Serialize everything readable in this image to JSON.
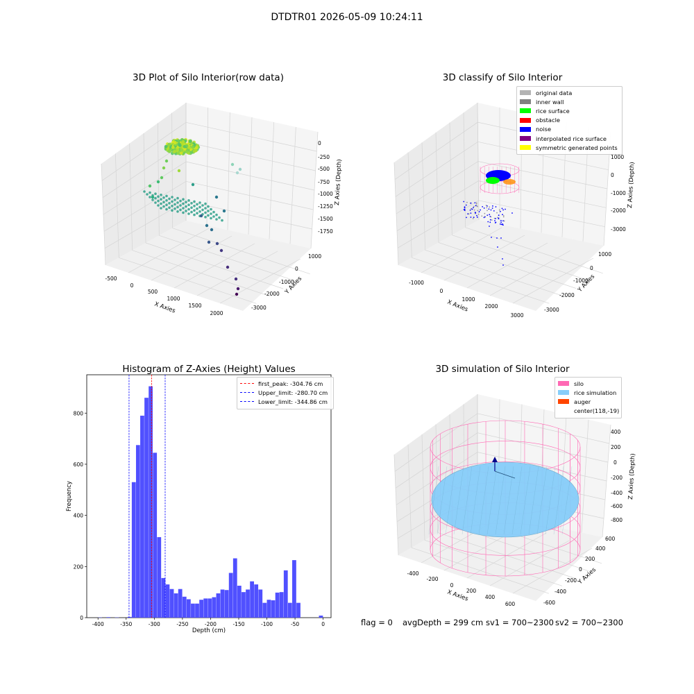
{
  "figure": {
    "suptitle": "DTDTR01 2026-05-09 10:24:11",
    "footer": {
      "flag": "flag = 0",
      "avg_depth": "avgDepth = 299 cm",
      "sv1": "sv1 = 700~2300",
      "sv2": "sv2 = 700~2300"
    }
  },
  "chart_data": [
    {
      "type": "scatter",
      "projection": "3d",
      "title": "3D Plot of Silo Interior(row data)",
      "xlabel": "X Axies",
      "ylabel": "Y Axies",
      "zlabel": "Z Axies (Depth)",
      "x_ticks": [
        "-500",
        "0",
        "500",
        "1000",
        "1500",
        "2000"
      ],
      "y_ticks": [
        "1000",
        "0",
        "-1000",
        "-2000",
        "-3000"
      ],
      "z_ticks": [
        "0",
        "-250",
        "-500",
        "-750",
        "-1000",
        "-1250",
        "-1500",
        "-1750"
      ],
      "colormap": "viridis (by depth)",
      "grid": true
    },
    {
      "type": "scatter",
      "projection": "3d",
      "title": "3D classify of Silo Interior",
      "xlabel": "X Axies",
      "ylabel": "Y Axies",
      "zlabel": "Z Axies (Depth)",
      "x_ticks": [
        "-1000",
        "0",
        "1000",
        "2000",
        "3000"
      ],
      "y_ticks": [
        "1000",
        "0",
        "-1000",
        "-2000",
        "-3000"
      ],
      "z_ticks": [
        "1000",
        "0",
        "-1000",
        "-2000",
        "-3000"
      ],
      "legend": [
        {
          "label": "original data",
          "color": "#b3b3b3"
        },
        {
          "label": "inner wall",
          "color": "#808080"
        },
        {
          "label": "rice surface",
          "color": "#00ff00"
        },
        {
          "label": "obstacle",
          "color": "#ff0000"
        },
        {
          "label": "noise",
          "color": "#0000ff"
        },
        {
          "label": "interpolated rice surface",
          "color": "#800080"
        },
        {
          "label": "symmetric generated points",
          "color": "#ffff00"
        }
      ],
      "legend_position": "top-right",
      "grid": true
    },
    {
      "type": "bar",
      "title": "Histogram of Z-Axies (Height) Values",
      "xlabel": "Depth (cm)",
      "ylabel": "Frequency",
      "bar_color": "#5050ff",
      "xlim": [
        -420,
        14
      ],
      "ylim": [
        0,
        950
      ],
      "x_ticks": [
        -400,
        -350,
        -300,
        -250,
        -200,
        -150,
        -100,
        -50,
        0
      ],
      "y_ticks": [
        0,
        200,
        400,
        600,
        800
      ],
      "bin_width": 7.5,
      "bins": [
        {
          "x": -400,
          "value": 1
        },
        {
          "x": -385,
          "value": 2
        },
        {
          "x": -370,
          "value": 1
        },
        {
          "x": -347.5,
          "value": 3
        },
        {
          "x": -340,
          "value": 530
        },
        {
          "x": -332.5,
          "value": 675
        },
        {
          "x": -325,
          "value": 790
        },
        {
          "x": -317.5,
          "value": 860
        },
        {
          "x": -310,
          "value": 905
        },
        {
          "x": -302.5,
          "value": 645
        },
        {
          "x": -295,
          "value": 315
        },
        {
          "x": -287.5,
          "value": 155
        },
        {
          "x": -280,
          "value": 130
        },
        {
          "x": -272.5,
          "value": 112
        },
        {
          "x": -265,
          "value": 95
        },
        {
          "x": -257.5,
          "value": 112
        },
        {
          "x": -250,
          "value": 82
        },
        {
          "x": -242.5,
          "value": 72
        },
        {
          "x": -235,
          "value": 55
        },
        {
          "x": -227.5,
          "value": 55
        },
        {
          "x": -220,
          "value": 70
        },
        {
          "x": -212.5,
          "value": 75
        },
        {
          "x": -205,
          "value": 75
        },
        {
          "x": -197.5,
          "value": 80
        },
        {
          "x": -190,
          "value": 95
        },
        {
          "x": -182.5,
          "value": 110
        },
        {
          "x": -175,
          "value": 108
        },
        {
          "x": -167.5,
          "value": 175
        },
        {
          "x": -160,
          "value": 232
        },
        {
          "x": -152.5,
          "value": 125
        },
        {
          "x": -145,
          "value": 100
        },
        {
          "x": -137.5,
          "value": 110
        },
        {
          "x": -130,
          "value": 142
        },
        {
          "x": -122.5,
          "value": 130
        },
        {
          "x": -115,
          "value": 110
        },
        {
          "x": -107.5,
          "value": 58
        },
        {
          "x": -100,
          "value": 70
        },
        {
          "x": -92.5,
          "value": 68
        },
        {
          "x": -85,
          "value": 98
        },
        {
          "x": -77.5,
          "value": 100
        },
        {
          "x": -70,
          "value": 185
        },
        {
          "x": -62.5,
          "value": 58
        },
        {
          "x": -55,
          "value": 225
        },
        {
          "x": -47.5,
          "value": 58
        },
        {
          "x": -7.5,
          "value": 8
        }
      ],
      "vlines": [
        {
          "label": "first_peak: -304.76 cm",
          "x": -304.76,
          "color": "#ff0000"
        },
        {
          "label": "Upper_limit: -280.70 cm",
          "x": -280.7,
          "color": "#0000ff"
        },
        {
          "label": "Lower_limit: -344.86 cm",
          "x": -344.86,
          "color": "#0000ff"
        }
      ],
      "legend_position": "top-right"
    },
    {
      "type": "surface",
      "projection": "3d",
      "title": "3D simulation of Silo Interior",
      "xlabel": "X Axies",
      "ylabel": "Y Axies",
      "zlabel": "Z Axies (Depth)",
      "x_ticks": [
        "-400",
        "-200",
        "0",
        "200",
        "400",
        "600"
      ],
      "y_ticks": [
        "600",
        "400",
        "200",
        "0",
        "-200",
        "-400",
        "-600"
      ],
      "z_ticks": [
        "400",
        "200",
        "0",
        "-200",
        "-400",
        "-600",
        "-800"
      ],
      "legend": [
        {
          "label": "silo",
          "color": "#ff69b4"
        },
        {
          "label": "rice simulation",
          "color": "#87cefa"
        },
        {
          "label": "auger",
          "color": "#ff4500"
        },
        {
          "label": "center(118,-19)",
          "color": ""
        }
      ],
      "legend_position": "top-right",
      "grid": true
    }
  ]
}
